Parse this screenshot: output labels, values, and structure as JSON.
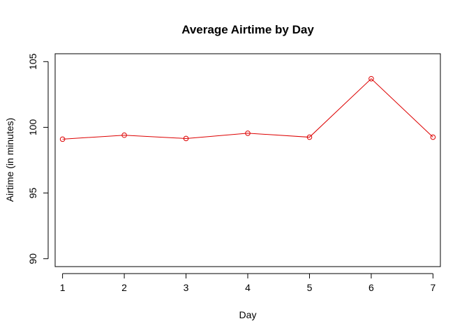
{
  "chart_data": {
    "type": "line",
    "title": "Average Airtime by Day",
    "xlabel": "Day",
    "ylabel": "Airtime (in minutes)",
    "x": [
      1,
      2,
      3,
      4,
      5,
      6,
      7
    ],
    "x_tick_labels": [
      "1",
      "2",
      "3",
      "4",
      "5",
      "6",
      "7"
    ],
    "y_ticks": [
      90,
      95,
      100,
      105
    ],
    "y_tick_labels": [
      "90",
      "95",
      "100",
      "105"
    ],
    "xlim": [
      0.88,
      7.12
    ],
    "ylim": [
      89.4,
      105.6
    ],
    "series": [
      {
        "values": [
          99.1,
          99.4,
          99.15,
          99.55,
          99.25,
          103.7,
          99.25
        ],
        "color": "#dd0000",
        "markers": "open-circle"
      }
    ],
    "grid": false,
    "legend": "none"
  }
}
